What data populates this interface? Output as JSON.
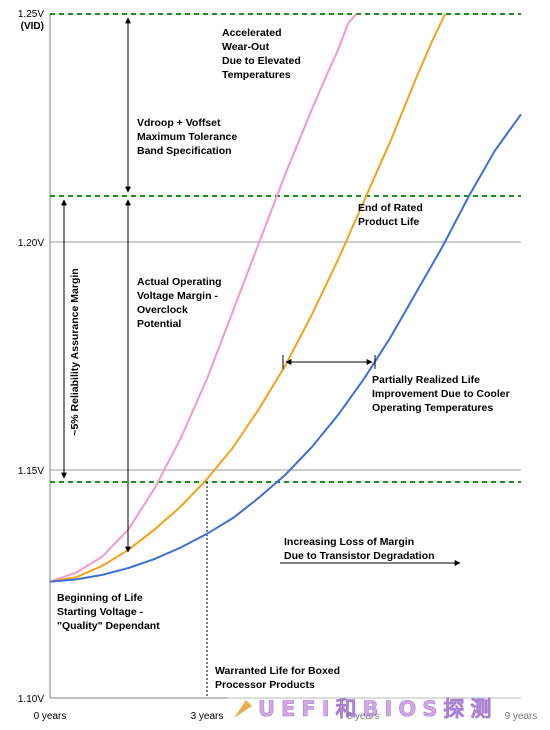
{
  "chart_data": {
    "type": "line",
    "y_tick_labels": [
      "1.25V",
      "1.20V",
      "1.15V",
      "1.10V"
    ],
    "y_tick_values": [
      1.25,
      1.2,
      1.15,
      1.1
    ],
    "y_top_sublabel": "(VID)",
    "x_tick_labels": [
      "0 years",
      "3 years",
      "6 years",
      "9 years"
    ],
    "x_tick_values": [
      0,
      3,
      6,
      9
    ],
    "xlim": [
      0,
      9
    ],
    "ylim": [
      1.1,
      1.25
    ],
    "grid_y": [
      1.2,
      1.15
    ],
    "dashed_levels": [
      1.25,
      1.2113,
      1.1477
    ],
    "colors": {
      "pink": "#f598c8",
      "orange": "#f4a21c",
      "blue": "#3f6fd6",
      "dashed": "#1f8f1f",
      "grid": "#9a9a9a"
    },
    "series": [
      {
        "color": "pink",
        "x": [
          0,
          0.5,
          1,
          1.5,
          2,
          2.5,
          3,
          3.5,
          4,
          4.5,
          5,
          5.3,
          5.5,
          5.7,
          5.85
        ],
        "y": [
          1.1255,
          1.1275,
          1.131,
          1.137,
          1.146,
          1.157,
          1.17,
          1.185,
          1.2,
          1.215,
          1.229,
          1.237,
          1.242,
          1.248,
          1.25
        ]
      },
      {
        "color": "orange",
        "x": [
          0,
          0.5,
          1,
          1.5,
          2,
          2.5,
          3,
          3.5,
          4,
          4.5,
          5,
          5.5,
          6,
          6.5,
          7,
          7.3,
          7.55
        ],
        "y": [
          1.1255,
          1.1265,
          1.129,
          1.1325,
          1.137,
          1.142,
          1.148,
          1.155,
          1.1635,
          1.173,
          1.184,
          1.196,
          1.209,
          1.222,
          1.236,
          1.244,
          1.25
        ]
      },
      {
        "color": "blue",
        "x": [
          0,
          0.5,
          1,
          1.5,
          2,
          2.5,
          3,
          3.5,
          4,
          4.5,
          5,
          5.5,
          6,
          6.5,
          7,
          7.5,
          8,
          8.5,
          9
        ],
        "y": [
          1.1255,
          1.126,
          1.127,
          1.1285,
          1.1305,
          1.133,
          1.136,
          1.1395,
          1.144,
          1.149,
          1.155,
          1.162,
          1.17,
          1.179,
          1.189,
          1.199,
          1.21,
          1.22,
          1.228
        ]
      }
    ],
    "annotations": {
      "accelerated": [
        "Accelerated",
        "Wear-Out",
        "Due to Elevated",
        "Temperatures"
      ],
      "vdroop": [
        "Vdroop + Voffset",
        "Maximum Tolerance",
        "Band Specification"
      ],
      "end_of_life": [
        "End of Rated",
        "Product Life"
      ],
      "actual_margin": [
        "Actual Operating",
        "Voltage Margin -",
        "Overclock",
        "Potential"
      ],
      "reliability": "~5% Reliability Assurance Margin",
      "partially": [
        "Partially Realized Life",
        "Improvement Due to Cooler",
        "Operating Temperatures"
      ],
      "increasing": [
        "Increasing Loss of Margin",
        "Due to Transistor Degradation"
      ],
      "beginning": [
        "Beginning of Life",
        "Starting Voltage -",
        "\"Quality\" Dependant"
      ],
      "warranted": [
        "Warranted Life for Boxed",
        "Processor Products"
      ]
    }
  },
  "watermark": {
    "text": "UEFI和BIOS探测"
  }
}
